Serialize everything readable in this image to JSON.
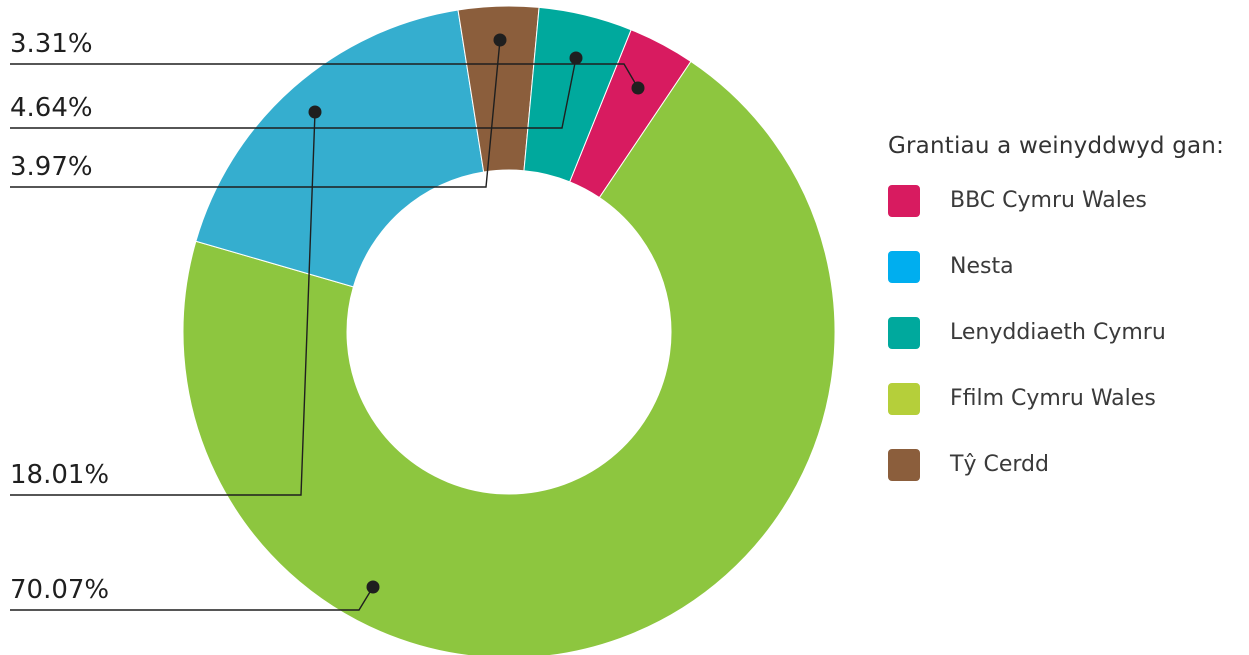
{
  "chart_data": {
    "type": "pie",
    "variant": "donut",
    "legend_title": "Grantiau a weinyddwyd gan:",
    "slices": [
      {
        "label": "BBC Cymru Wales",
        "value": 3.31,
        "display": "3.31%",
        "color": "#d81b60"
      },
      {
        "label": "Ffilm Cymru Wales",
        "value": 70.07,
        "display": "70.07%",
        "color": "#8dc63f"
      },
      {
        "label": "Nesta",
        "value": 18.01,
        "display": "18.01%",
        "color": "#35aecf"
      },
      {
        "label": "Tŷ Cerdd",
        "value": 3.97,
        "display": "3.97%",
        "color": "#8b5e3c"
      },
      {
        "label": "Lenyddiaeth Cymru",
        "value": 4.64,
        "display": "4.64%",
        "color": "#00a99d"
      }
    ],
    "legend": [
      {
        "label": "BBC Cymru Wales",
        "color": "#d81b60"
      },
      {
        "label": "Nesta",
        "color": "#00aeef"
      },
      {
        "label": "Lenyddiaeth Cymru",
        "color": "#00a99d"
      },
      {
        "label": "Ffilm Cymru Wales",
        "color": "#b5cf3a"
      },
      {
        "label": "Tŷ Cerdd",
        "color": "#8b5e3c"
      }
    ],
    "legend_placement": "right"
  }
}
